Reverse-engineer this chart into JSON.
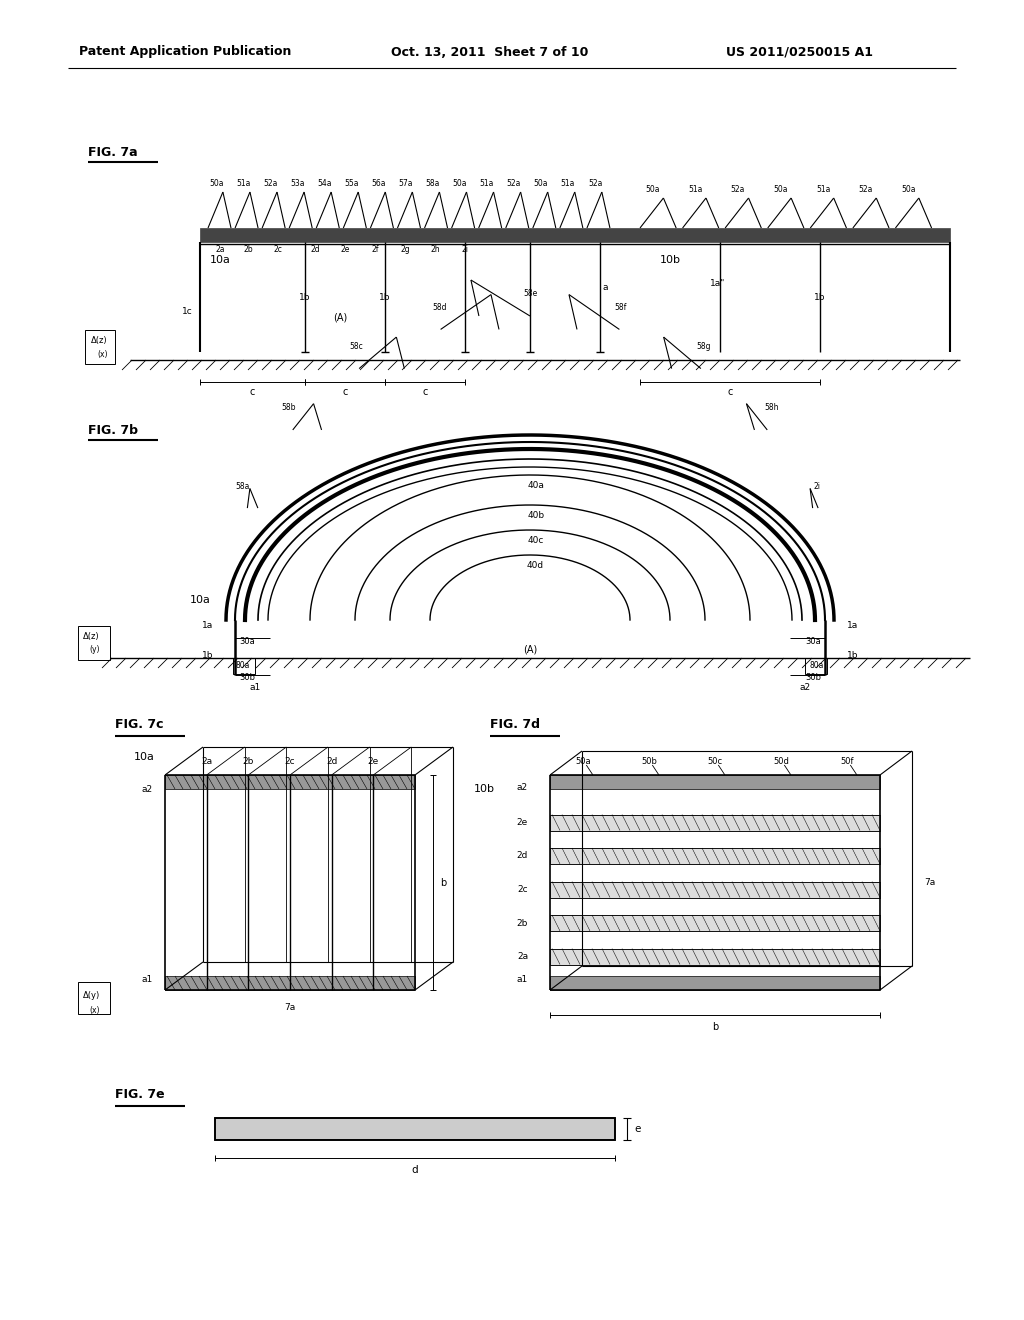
{
  "bg_color": "#ffffff",
  "line_color": "#000000",
  "header_left": "Patent Application Publication",
  "header_mid": "Oct. 13, 2011  Sheet 7 of 10",
  "header_right": "US 2011/0250015 A1"
}
